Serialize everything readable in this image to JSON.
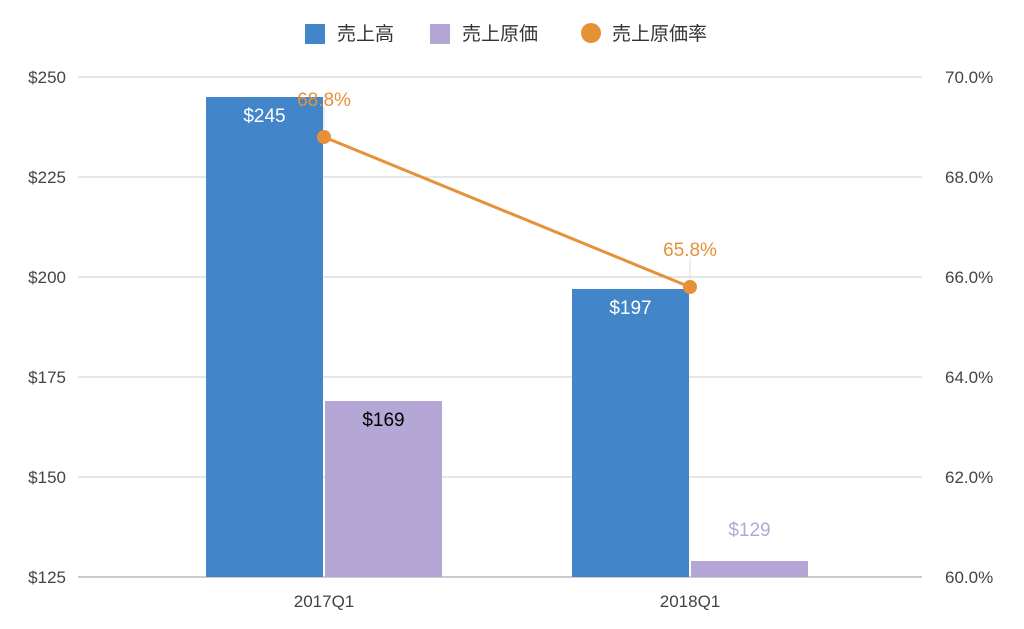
{
  "chart_data": {
    "type": "bar",
    "categories": [
      "2017Q1",
      "2018Q1"
    ],
    "series": [
      {
        "name": "売上高",
        "kind": "bar",
        "axis": "left",
        "color": "#4285c8",
        "values": [
          245,
          197
        ],
        "labels": [
          "$245",
          "$197"
        ],
        "label_color": "#ffffff"
      },
      {
        "name": "売上原価",
        "kind": "bar",
        "axis": "left",
        "color": "#b4a7d6",
        "values": [
          169,
          129
        ],
        "labels": [
          "$169",
          "$129"
        ],
        "label_colors": [
          "#000000",
          "#b4a7d6"
        ]
      },
      {
        "name": "売上原価率",
        "kind": "line",
        "axis": "right",
        "color": "#e69138",
        "values": [
          68.8,
          65.8
        ],
        "labels": [
          "68.8%",
          "65.8%"
        ],
        "label_color": "#e69138"
      }
    ],
    "y_left": {
      "ylim": [
        125,
        250
      ],
      "ticks": [
        125,
        150,
        175,
        200,
        225,
        250
      ],
      "tick_labels": [
        "$125",
        "$150",
        "$175",
        "$200",
        "$225",
        "$250"
      ]
    },
    "y_right": {
      "ylim": [
        60,
        70
      ],
      "ticks": [
        60,
        62,
        64,
        66,
        68,
        70
      ],
      "tick_labels": [
        "60.0%",
        "62.0%",
        "64.0%",
        "66.0%",
        "68.0%",
        "70.0%"
      ]
    },
    "grid": true,
    "legend_position": "top-center",
    "colors": {
      "gridline": "#cccccc",
      "axis_text": "#444444"
    }
  }
}
